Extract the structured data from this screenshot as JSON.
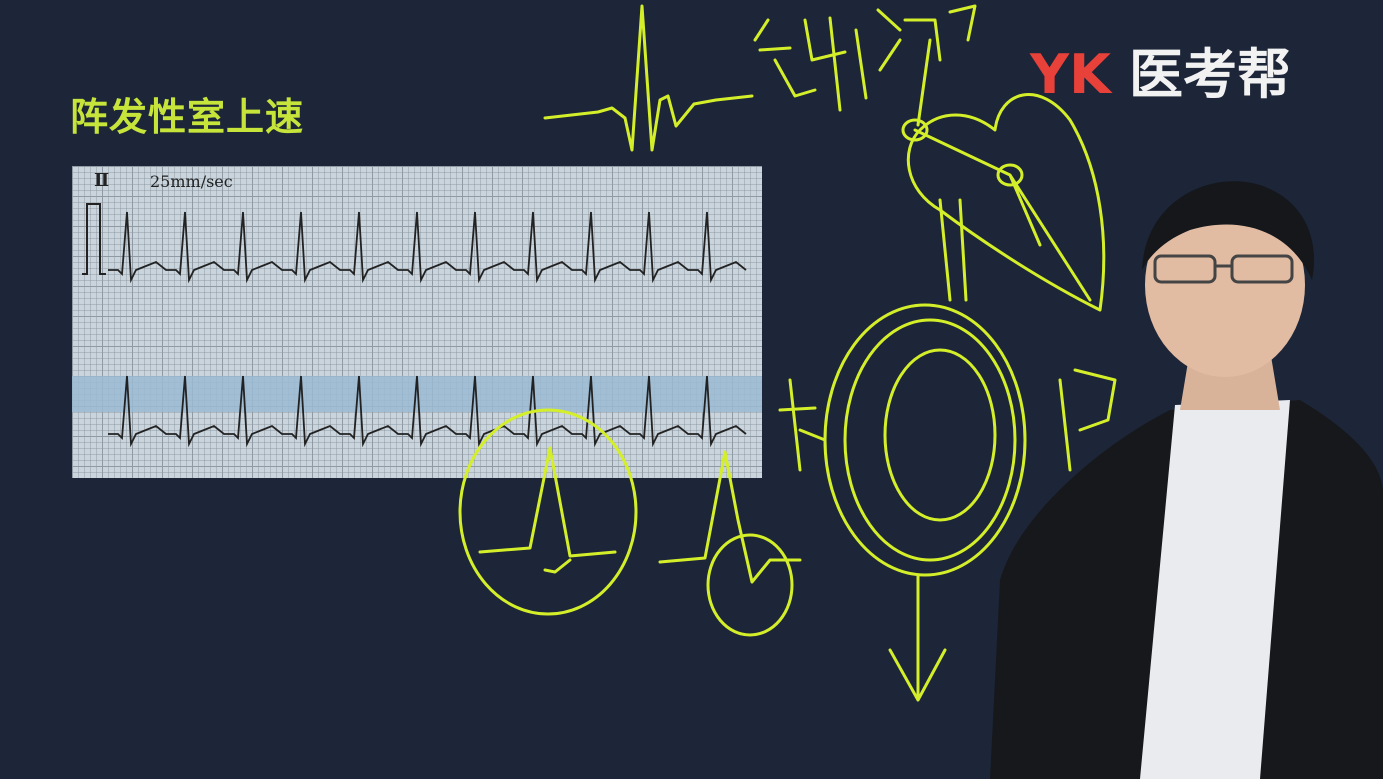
{
  "slide": {
    "title": "阵发性室上速",
    "logo": {
      "latin": "YK",
      "chinese": "医考帮"
    },
    "ecg": {
      "lead": "Ⅱ",
      "speed": "25mm/sec"
    }
  },
  "colors": {
    "background": "#1c2638",
    "title": "#c7e43b",
    "annotation": "#d4ef2a",
    "logo_latin": "#e8413a",
    "logo_chinese": "#f2f2f2",
    "ecg_paper": "#c9d4dc"
  }
}
